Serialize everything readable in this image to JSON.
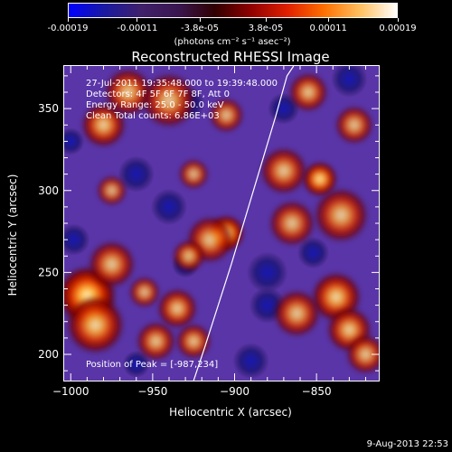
{
  "colors": {
    "background": "#000000",
    "axis": "#ffffff",
    "colorbar_stops": [
      "#0000ff",
      "#1a1aa0",
      "#40206a",
      "#3a1650",
      "#300000",
      "#900000",
      "#e02000",
      "#ff7000",
      "#ffc060",
      "#ffffff"
    ],
    "image_low": "#5a35a8",
    "image_high": "#fff8c8"
  },
  "colorbar": {
    "tick_labels": [
      "-0.00019",
      "-0.00011",
      "-3.8e-05",
      "3.8e-05",
      "0.00011",
      "0.00019"
    ],
    "tick_values": [
      -0.00019,
      -0.00011,
      -3.8e-05,
      3.8e-05,
      0.00011,
      0.00019
    ],
    "range": [
      -0.00019,
      0.00019
    ],
    "units_label": "(photons cm⁻² s⁻¹ asec⁻²)"
  },
  "annotations": {
    "time_range": "27-Jul-2011 19:35:48.000 to 19:39:48.000",
    "detectors": "Detectors: 4F 5F 6F 7F 8F, Att 0",
    "energy_range": "Energy Range: 25.0 - 50.0 keV",
    "clean": "Clean     Total counts: 6.86E+03",
    "peak": "Position of Peak = [-987,234]"
  },
  "footer": "9-Aug-2013 22:53",
  "chart_data": {
    "type": "heatmap",
    "title": "Reconstructed RHESSI Image",
    "xlabel": "Heliocentric X (arcsec)",
    "ylabel": "Heliocentric Y (arcsec)",
    "xlim": [
      -1004,
      -812
    ],
    "ylim": [
      184,
      376
    ],
    "x_ticks": [
      -1000,
      -950,
      -900,
      -850
    ],
    "x_tick_labels": [
      "−1000",
      "−950",
      "−900",
      "−850"
    ],
    "y_ticks": [
      200,
      250,
      300,
      350
    ],
    "y_tick_labels": [
      "200",
      "250",
      "300",
      "350"
    ],
    "grid": false,
    "limb_curve": {
      "x": [
        -925,
        -918,
        -910,
        -902,
        -893,
        -884,
        -875,
        -868,
        -864
      ],
      "y": [
        184,
        205,
        230,
        255,
        285,
        315,
        345,
        370,
        376
      ]
    },
    "blobs": [
      {
        "x": -990,
        "y": 236,
        "r": 13,
        "level": 1.0
      },
      {
        "x": -985,
        "y": 218,
        "r": 14,
        "level": 0.75
      },
      {
        "x": -975,
        "y": 255,
        "r": 12,
        "level": 0.6
      },
      {
        "x": -980,
        "y": 340,
        "r": 11,
        "level": 0.7
      },
      {
        "x": -965,
        "y": 360,
        "r": 12,
        "level": 0.65
      },
      {
        "x": -940,
        "y": 355,
        "r": 14,
        "level": 0.6
      },
      {
        "x": -905,
        "y": 274,
        "r": 8,
        "level": 0.95
      },
      {
        "x": -915,
        "y": 270,
        "r": 12,
        "level": 0.6
      },
      {
        "x": -928,
        "y": 260,
        "r": 8,
        "level": 0.65
      },
      {
        "x": -935,
        "y": 228,
        "r": 10,
        "level": 0.65
      },
      {
        "x": -948,
        "y": 208,
        "r": 10,
        "level": 0.6
      },
      {
        "x": -925,
        "y": 208,
        "r": 9,
        "level": 0.6
      },
      {
        "x": -955,
        "y": 238,
        "r": 8,
        "level": 0.55
      },
      {
        "x": -848,
        "y": 307,
        "r": 8,
        "level": 0.9
      },
      {
        "x": -870,
        "y": 312,
        "r": 12,
        "level": 0.6
      },
      {
        "x": -865,
        "y": 280,
        "r": 12,
        "level": 0.55
      },
      {
        "x": -835,
        "y": 285,
        "r": 14,
        "level": 0.6
      },
      {
        "x": -838,
        "y": 235,
        "r": 12,
        "level": 0.75
      },
      {
        "x": -862,
        "y": 225,
        "r": 12,
        "level": 0.6
      },
      {
        "x": -830,
        "y": 215,
        "r": 11,
        "level": 0.7
      },
      {
        "x": -820,
        "y": 200,
        "r": 10,
        "level": 0.6
      },
      {
        "x": -855,
        "y": 360,
        "r": 10,
        "level": 0.6
      },
      {
        "x": -827,
        "y": 340,
        "r": 10,
        "level": 0.55
      },
      {
        "x": -905,
        "y": 346,
        "r": 9,
        "level": 0.55
      },
      {
        "x": -925,
        "y": 310,
        "r": 8,
        "level": 0.5
      },
      {
        "x": -975,
        "y": 300,
        "r": 8,
        "level": 0.5
      }
    ],
    "dark_spots": [
      {
        "x": -830,
        "y": 368,
        "r": 8
      },
      {
        "x": -870,
        "y": 350,
        "r": 7
      },
      {
        "x": -880,
        "y": 250,
        "r": 9
      },
      {
        "x": -880,
        "y": 230,
        "r": 8
      },
      {
        "x": -852,
        "y": 262,
        "r": 7
      },
      {
        "x": -890,
        "y": 196,
        "r": 8
      },
      {
        "x": -928,
        "y": 353,
        "r": 7
      },
      {
        "x": -960,
        "y": 310,
        "r": 8
      },
      {
        "x": -940,
        "y": 290,
        "r": 8
      },
      {
        "x": -998,
        "y": 270,
        "r": 7
      },
      {
        "x": -930,
        "y": 255,
        "r": 6
      },
      {
        "x": -960,
        "y": 194,
        "r": 6
      },
      {
        "x": -1000,
        "y": 330,
        "r": 6
      }
    ]
  }
}
